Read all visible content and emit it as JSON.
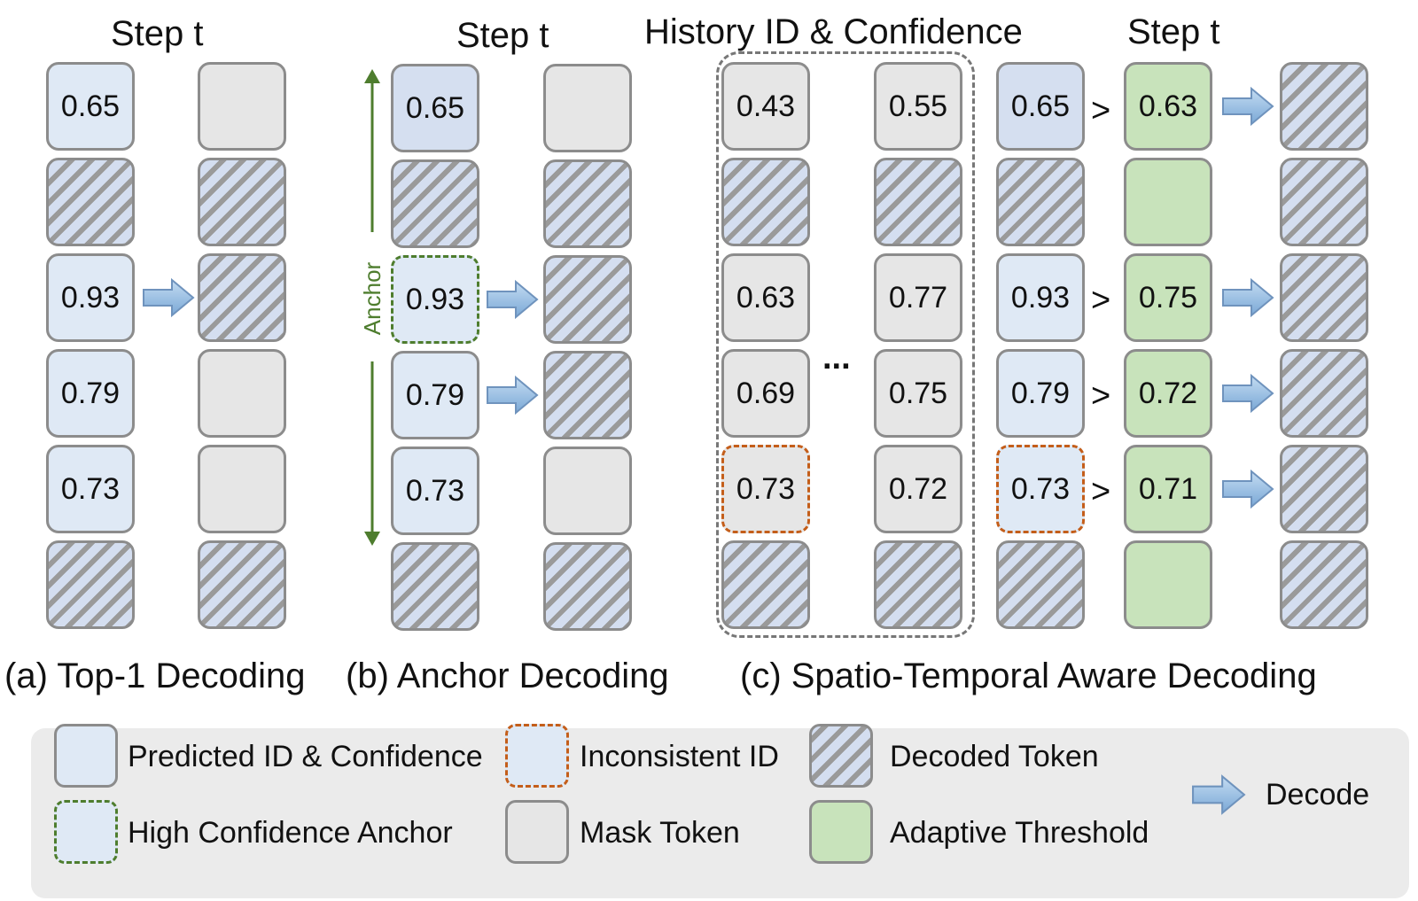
{
  "titles": {
    "step_a": "Step t",
    "step_b": "Step t",
    "history": "History ID & Confidence",
    "step_c": "Step t"
  },
  "captions": {
    "a": "(a) Top-1 Decoding",
    "b": "(b) Anchor Decoding",
    "c": "(c) Spatio-Temporal Aware Decoding"
  },
  "anchor_label": "Anchor",
  "ellipsis": "...",
  "panel_a": {
    "input": [
      "0.65",
      "",
      "0.93",
      "0.79",
      "0.73",
      ""
    ],
    "output_kind": [
      "mask",
      "decoded",
      "decoded",
      "mask",
      "mask",
      "decoded"
    ]
  },
  "panel_b": {
    "input": [
      "0.65",
      "",
      "0.93",
      "0.79",
      "0.73",
      ""
    ],
    "output_kind": [
      "mask",
      "decoded",
      "decoded",
      "decoded",
      "mask",
      "decoded"
    ]
  },
  "panel_c": {
    "history_first": [
      "0.43",
      "",
      "0.63",
      "0.69",
      "0.73",
      ""
    ],
    "history_last": [
      "0.55",
      "",
      "0.77",
      "0.75",
      "0.72",
      ""
    ],
    "current": [
      "0.65",
      "",
      "0.93",
      "0.79",
      "0.73",
      ""
    ],
    "comparison": ">",
    "threshold": [
      "0.63",
      "",
      "0.75",
      "0.72",
      "0.71",
      ""
    ]
  },
  "legend": {
    "predicted": "Predicted ID & Confidence",
    "inconsistent": "Inconsistent ID",
    "decoded": "Decoded Token",
    "anchor": "High Confidence Anchor",
    "mask": "Mask Token",
    "threshold": "Adaptive Threshold",
    "decode": "Decode"
  },
  "colors": {
    "predicted": "#dfe9f5",
    "mask": "#e6e6e6",
    "threshold": "#c8e3bb",
    "anchor_border": "#4e7d2e",
    "inconsistent_border": "#c45e1a",
    "arrow": "#8fb8e0"
  }
}
